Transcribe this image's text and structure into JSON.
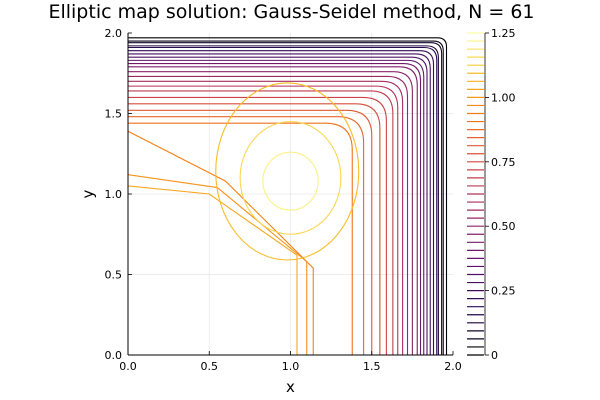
{
  "chart_data": {
    "type": "contour",
    "title": "Elliptic map solution: Gauss-Seidel method, N = 61",
    "xlabel": "x",
    "ylabel": "y",
    "xlim": [
      0.0,
      2.0
    ],
    "ylim": [
      0.0,
      2.0
    ],
    "xticks": [
      "0.0",
      "0.5",
      "1.0",
      "1.5",
      "2.0"
    ],
    "yticks": [
      "0.0",
      "0.5",
      "1.0",
      "1.5",
      "2.0"
    ],
    "grid": true,
    "colormap": "inferno-like (black → purple → red → orange → yellow)",
    "colorbar": {
      "min": 0.0,
      "max": 1.25,
      "ticks": [
        "0",
        "0.25",
        "0.50",
        "0.75",
        "1.00",
        "1.25"
      ],
      "levels": 41
    },
    "contour_levels_outer": {
      "x_positions": [
        1.04,
        1.1,
        1.14,
        1.38,
        1.45,
        1.5,
        1.55,
        1.59,
        1.63,
        1.66,
        1.69,
        1.72,
        1.75,
        1.78,
        1.8,
        1.82,
        1.84,
        1.86,
        1.88,
        1.9,
        1.91,
        1.93,
        1.94,
        1.96
      ],
      "y_positions": [
        1.05,
        1.12,
        1.39,
        1.44,
        1.48,
        1.52,
        1.56,
        1.6,
        1.64,
        1.67,
        1.7,
        1.73,
        1.76,
        1.79,
        1.81,
        1.83,
        1.85,
        1.87,
        1.89,
        1.91,
        1.92,
        1.94,
        1.95,
        1.97
      ]
    },
    "contour_levels_inner_loops": [
      {
        "center": [
          1.0,
          1.08
        ],
        "rx": 0.17,
        "ry": 0.18
      },
      {
        "center": [
          1.0,
          1.1
        ],
        "rx": 0.31,
        "ry": 0.35
      },
      {
        "center": [
          0.98,
          1.14
        ],
        "rx": 0.44,
        "ry": 0.55
      }
    ]
  }
}
